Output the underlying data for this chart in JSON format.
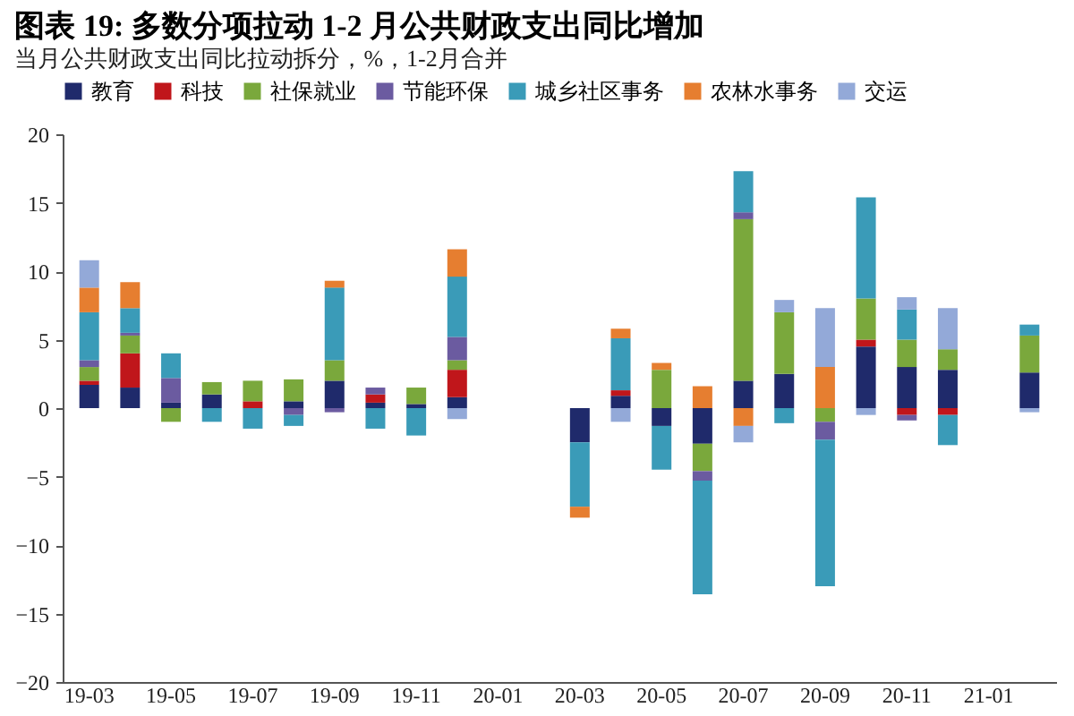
{
  "chart_data": {
    "type": "bar",
    "stacked": true,
    "title": "图表 19:  多数分项拉动 1-2 月公共财政支出同比增加",
    "subtitle": "当月公共财政支出同比拉动拆分，%，1-2月合并",
    "categories": [
      "19-03",
      null,
      "19-05",
      null,
      "19-07",
      null,
      "19-09",
      null,
      "19-11",
      null,
      "20-01",
      null,
      "20-03",
      null,
      "20-05",
      null,
      "20-07",
      null,
      "20-09",
      null,
      "20-11",
      null,
      "21-01",
      null
    ],
    "series": [
      {
        "name": "教育",
        "color": "#1f2a6b",
        "values": [
          1.7,
          1.5,
          0.4,
          1.0,
          null,
          0.5,
          2.0,
          0.4,
          0.3,
          0.8,
          null,
          null,
          -2.5,
          0.9,
          -1.3,
          -2.6,
          2.0,
          2.5,
          null,
          4.5,
          3.0,
          2.8,
          null,
          2.6
        ]
      },
      {
        "name": "科技",
        "color": "#c0161b",
        "values": [
          0.3,
          2.5,
          null,
          null,
          0.5,
          null,
          null,
          0.6,
          null,
          2.0,
          null,
          null,
          null,
          0.4,
          null,
          null,
          null,
          null,
          null,
          0.5,
          -0.5,
          -0.5,
          null,
          null
        ]
      },
      {
        "name": "社保就业",
        "color": "#7aa83c",
        "values": [
          1.0,
          1.3,
          -1.0,
          0.9,
          1.5,
          1.6,
          1.5,
          null,
          1.2,
          0.7,
          null,
          null,
          null,
          null,
          2.8,
          -2.0,
          11.8,
          4.5,
          -1.0,
          3.0,
          2.0,
          1.5,
          null,
          2.7
        ]
      },
      {
        "name": "节能环保",
        "color": "#6b5ba0",
        "values": [
          0.5,
          0.2,
          1.8,
          null,
          null,
          -0.5,
          -0.3,
          0.5,
          null,
          1.7,
          null,
          null,
          null,
          null,
          null,
          -0.7,
          0.5,
          null,
          -1.3,
          null,
          -0.4,
          null,
          null,
          null
        ]
      },
      {
        "name": "城乡社区事务",
        "color": "#3a9bb8",
        "values": [
          3.5,
          1.8,
          1.8,
          -1.0,
          -1.5,
          -0.8,
          5.3,
          -1.5,
          -2.0,
          4.4,
          null,
          null,
          -4.7,
          3.8,
          -3.2,
          -8.3,
          3.0,
          -1.1,
          -10.7,
          7.4,
          2.2,
          -2.2,
          null,
          0.8
        ]
      },
      {
        "name": "农林水事务",
        "color": "#e67e30",
        "values": [
          1.8,
          1.9,
          null,
          null,
          null,
          null,
          0.5,
          null,
          null,
          2.0,
          null,
          null,
          -0.8,
          0.7,
          0.5,
          1.6,
          -1.3,
          null,
          3.0,
          null,
          null,
          null,
          null,
          null
        ]
      },
      {
        "name": "交运",
        "color": "#93a9d8",
        "values": [
          2.0,
          null,
          null,
          null,
          null,
          null,
          null,
          null,
          null,
          -0.8,
          null,
          null,
          null,
          -1.0,
          null,
          null,
          -1.2,
          0.9,
          4.3,
          -0.5,
          0.9,
          3.0,
          null,
          -0.3
        ]
      }
    ],
    "ylim": [
      -20,
      20
    ],
    "yticks": [
      -20,
      -15,
      -10,
      -5,
      0,
      5,
      10,
      15,
      20
    ],
    "grid": false,
    "legend": "top"
  }
}
